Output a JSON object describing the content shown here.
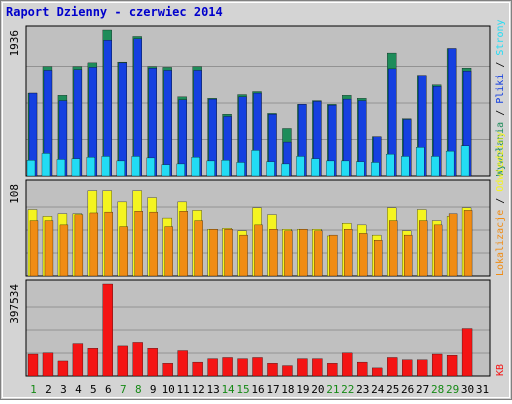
{
  "title": "Raport Dzienny -  czerwiec 2014",
  "colors": {
    "title": "#0000cc",
    "frame_bg": "#d4d4d4",
    "plot_bg": "#c0c0c0",
    "wywolania": "#1e8c5a",
    "pliki": "#1540e0",
    "strony": "#22dcf4",
    "odwiedziny": "#f4f420",
    "lokalizacje": "#f08c14",
    "kb": "#f41414",
    "day_weekend": "#168a16",
    "day_normal": "#000000",
    "grid": "#000000"
  },
  "chart_data": [
    {
      "type": "bar",
      "panel": "top",
      "ymax_label": "1936",
      "ymax": 1936,
      "categories": [
        "1",
        "2",
        "3",
        "4",
        "5",
        "6",
        "7",
        "8",
        "9",
        "10",
        "11",
        "12",
        "13",
        "14",
        "15",
        "16",
        "17",
        "18",
        "19",
        "20",
        "21",
        "22",
        "23",
        "24",
        "25",
        "26",
        "27",
        "28",
        "29",
        "30",
        "31"
      ],
      "series": [
        {
          "name": "Wywołania",
          "values": [
            1100,
            1450,
            1070,
            1450,
            1500,
            1936,
            1510,
            1850,
            1450,
            1440,
            1050,
            1450,
            1030,
            820,
            1080,
            1120,
            830,
            630,
            950,
            1000,
            950,
            1070,
            1030,
            520,
            1630,
            760,
            1330,
            1210,
            1690,
            1430,
            0
          ]
        },
        {
          "name": "Pliki",
          "values": [
            1100,
            1400,
            1000,
            1410,
            1440,
            1800,
            1500,
            1820,
            1430,
            1400,
            1010,
            1400,
            1020,
            790,
            1050,
            1100,
            820,
            450,
            950,
            990,
            940,
            1020,
            1000,
            520,
            1420,
            750,
            1330,
            1190,
            1690,
            1390,
            0
          ]
        },
        {
          "name": "Strony",
          "values": [
            210,
            300,
            220,
            230,
            250,
            260,
            200,
            260,
            240,
            150,
            160,
            250,
            200,
            210,
            180,
            340,
            190,
            160,
            260,
            230,
            200,
            200,
            190,
            180,
            290,
            260,
            380,
            260,
            330,
            400,
            0
          ]
        }
      ]
    },
    {
      "type": "bar",
      "panel": "middle",
      "ymax_label": "108",
      "ymax": 108,
      "categories": [
        "1",
        "2",
        "3",
        "4",
        "5",
        "6",
        "7",
        "8",
        "9",
        "10",
        "11",
        "12",
        "13",
        "14",
        "15",
        "16",
        "17",
        "18",
        "19",
        "20",
        "21",
        "22",
        "23",
        "24",
        "25",
        "26",
        "27",
        "28",
        "29",
        "30",
        "31"
      ],
      "series": [
        {
          "name": "Odwiedziny",
          "values": [
            78,
            70,
            73,
            73,
            100,
            100,
            87,
            100,
            92,
            68,
            87,
            77,
            55,
            56,
            53,
            80,
            72,
            55,
            55,
            55,
            47,
            62,
            60,
            48,
            80,
            53,
            78,
            65,
            70,
            80,
            0
          ]
        },
        {
          "name": "Lokalizacje",
          "values": [
            65,
            65,
            60,
            72,
            74,
            75,
            58,
            76,
            75,
            58,
            76,
            65,
            55,
            55,
            48,
            60,
            55,
            53,
            55,
            53,
            48,
            55,
            50,
            42,
            65,
            48,
            65,
            60,
            73,
            77,
            0
          ]
        }
      ]
    },
    {
      "type": "bar",
      "panel": "bottom",
      "ymax_label": "397534",
      "ymax": 397534,
      "categories": [
        "1",
        "2",
        "3",
        "4",
        "5",
        "6",
        "7",
        "8",
        "9",
        "10",
        "11",
        "12",
        "13",
        "14",
        "15",
        "16",
        "17",
        "18",
        "19",
        "20",
        "21",
        "22",
        "23",
        "24",
        "25",
        "26",
        "27",
        "28",
        "29",
        "30",
        "31"
      ],
      "series": [
        {
          "name": "KB",
          "values": [
            95000,
            100000,
            65000,
            140000,
            120000,
            397534,
            130000,
            145000,
            120000,
            55000,
            110000,
            60000,
            75000,
            80000,
            75000,
            80000,
            55000,
            45000,
            75000,
            75000,
            55000,
            100000,
            60000,
            35000,
            80000,
            70000,
            70000,
            95000,
            90000,
            205000,
            0
          ]
        }
      ]
    }
  ],
  "x_labels": [
    "1",
    "2",
    "3",
    "4",
    "5",
    "6",
    "7",
    "8",
    "9",
    "10",
    "11",
    "12",
    "13",
    "14",
    "15",
    "16",
    "17",
    "18",
    "19",
    "20",
    "21",
    "22",
    "23",
    "24",
    "25",
    "26",
    "27",
    "28",
    "29",
    "30",
    "31"
  ],
  "weekend_days": [
    "1",
    "7",
    "8",
    "14",
    "15",
    "21",
    "22",
    "28",
    "29"
  ],
  "right_labels": {
    "top": [
      {
        "text": "Wywołania",
        "color_key": "wywolania"
      },
      {
        "text": " / ",
        "color_key": "day_normal"
      },
      {
        "text": "Pliki",
        "color_key": "pliki"
      },
      {
        "text": " / ",
        "color_key": "day_normal"
      },
      {
        "text": "Strony",
        "color_key": "strony"
      }
    ],
    "middle": [
      {
        "text": "Lokalizacje",
        "color_key": "lokalizacje"
      },
      {
        "text": " / ",
        "color_key": "day_normal"
      },
      {
        "text": "Odwiedziny",
        "color_key": "odwiedziny"
      }
    ],
    "bottom": [
      {
        "text": "KB",
        "color_key": "kb"
      }
    ]
  }
}
